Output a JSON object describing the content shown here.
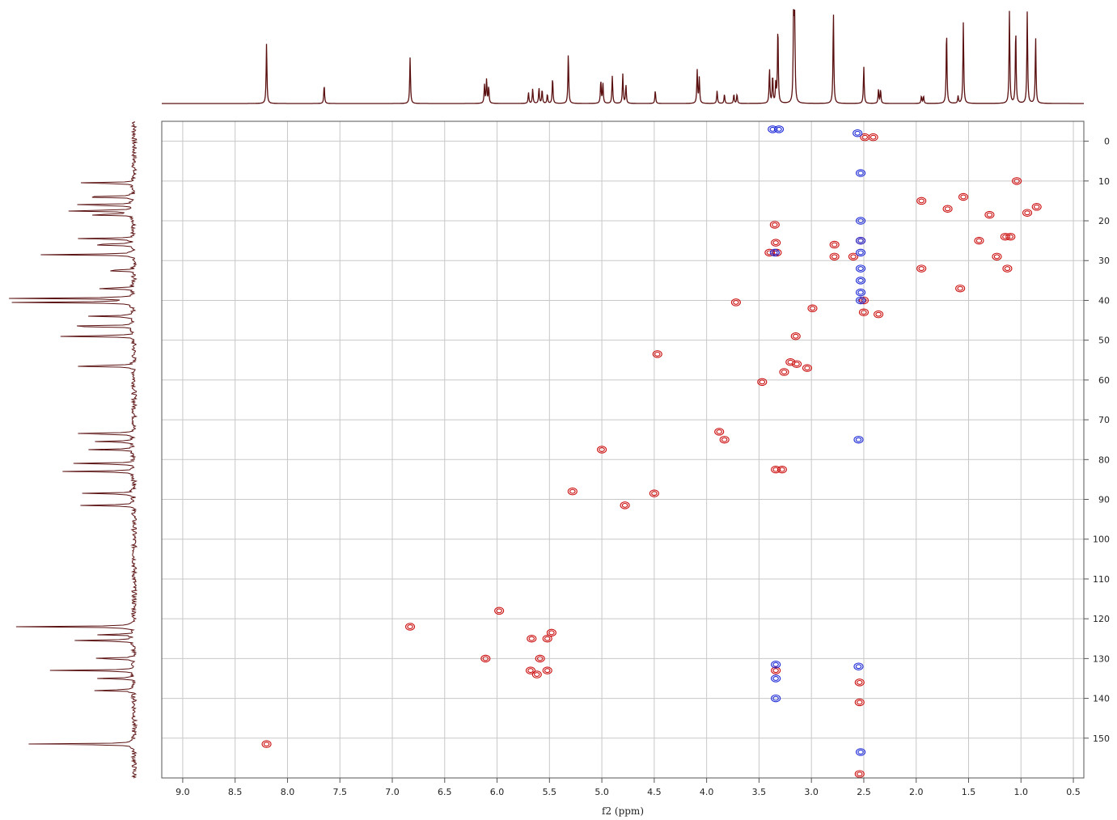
{
  "chart_data": {
    "type": "scatter",
    "subtype": "2D NMR contour (HSQC)",
    "xlabel": "f2 (ppm)",
    "ylabel": "",
    "xlim": [
      9.2,
      0.4
    ],
    "ylim": [
      -5,
      160
    ],
    "x_reversed": true,
    "y_reversed": true,
    "grid": true,
    "legend": "none",
    "x_ticks": [
      "9.0",
      "8.5",
      "8.0",
      "7.5",
      "7.0",
      "6.5",
      "6.0",
      "5.5",
      "5.0",
      "4.5",
      "4.0",
      "3.5",
      "3.0",
      "2.5",
      "2.0",
      "1.5",
      "1.0",
      "0.5"
    ],
    "y_ticks": [
      "0",
      "10",
      "20",
      "30",
      "40",
      "50",
      "60",
      "70",
      "80",
      "90",
      "100",
      "110",
      "120",
      "130",
      "140",
      "150"
    ],
    "colors": {
      "positive": "#cc1111",
      "negative": "#1e2bd6",
      "projection": "#5a1010",
      "grid": "#c8c8c8",
      "frame": "#555555"
    },
    "series": [
      {
        "name": "",
        "sign": "positive",
        "points": [
          {
            "x": 8.2,
            "y": 151.5
          },
          {
            "x": 6.83,
            "y": 122
          },
          {
            "x": 6.11,
            "y": 130
          },
          {
            "x": 5.98,
            "y": 118
          },
          {
            "x": 5.67,
            "y": 125
          },
          {
            "x": 5.59,
            "y": 130
          },
          {
            "x": 5.62,
            "y": 134
          },
          {
            "x": 5.52,
            "y": 133
          },
          {
            "x": 5.48,
            "y": 123.5
          },
          {
            "x": 5.52,
            "y": 125
          },
          {
            "x": 5.68,
            "y": 133
          },
          {
            "x": 5.28,
            "y": 88
          },
          {
            "x": 5.0,
            "y": 77.5
          },
          {
            "x": 4.78,
            "y": 91.5
          },
          {
            "x": 4.5,
            "y": 88.5
          },
          {
            "x": 4.47,
            "y": 53.5
          },
          {
            "x": 3.88,
            "y": 73
          },
          {
            "x": 3.83,
            "y": 75
          },
          {
            "x": 3.72,
            "y": 40.5
          },
          {
            "x": 3.47,
            "y": 60.5
          },
          {
            "x": 3.4,
            "y": 28
          },
          {
            "x": 3.34,
            "y": 82.5
          },
          {
            "x": 3.28,
            "y": 82.5
          },
          {
            "x": 3.26,
            "y": 58
          },
          {
            "x": 3.2,
            "y": 55.5
          },
          {
            "x": 3.14,
            "y": 56
          },
          {
            "x": 3.15,
            "y": 49
          },
          {
            "x": 3.35,
            "y": 21
          },
          {
            "x": 3.34,
            "y": 25.5
          },
          {
            "x": 3.33,
            "y": 28
          },
          {
            "x": 3.04,
            "y": 57
          },
          {
            "x": 2.99,
            "y": 42
          },
          {
            "x": 2.78,
            "y": 26
          },
          {
            "x": 2.78,
            "y": 29
          },
          {
            "x": 2.6,
            "y": 29
          },
          {
            "x": 2.5,
            "y": 40
          },
          {
            "x": 2.5,
            "y": 43
          },
          {
            "x": 2.49,
            "y": -1
          },
          {
            "x": 2.41,
            "y": -1
          },
          {
            "x": 2.36,
            "y": 43.5
          },
          {
            "x": 1.95,
            "y": 15
          },
          {
            "x": 1.95,
            "y": 32
          },
          {
            "x": 1.7,
            "y": 17
          },
          {
            "x": 1.55,
            "y": 14
          },
          {
            "x": 1.58,
            "y": 37
          },
          {
            "x": 1.4,
            "y": 25
          },
          {
            "x": 1.3,
            "y": 18.5
          },
          {
            "x": 1.23,
            "y": 29
          },
          {
            "x": 1.15,
            "y": 24
          },
          {
            "x": 1.1,
            "y": 24
          },
          {
            "x": 1.13,
            "y": 32
          },
          {
            "x": 1.04,
            "y": 10
          },
          {
            "x": 0.94,
            "y": 18
          },
          {
            "x": 0.85,
            "y": 16.5
          },
          {
            "x": 2.54,
            "y": 136
          },
          {
            "x": 2.54,
            "y": 141
          },
          {
            "x": 2.54,
            "y": 159
          },
          {
            "x": 3.34,
            "y": 133
          },
          {
            "x": 2.53,
            "y": 25
          }
        ]
      },
      {
        "name": "",
        "sign": "negative",
        "points": [
          {
            "x": 3.37,
            "y": -3
          },
          {
            "x": 3.31,
            "y": -3
          },
          {
            "x": 2.56,
            "y": -2
          },
          {
            "x": 2.53,
            "y": 8
          },
          {
            "x": 2.53,
            "y": 20
          },
          {
            "x": 2.53,
            "y": 25
          },
          {
            "x": 2.53,
            "y": 28
          },
          {
            "x": 2.53,
            "y": 32
          },
          {
            "x": 2.53,
            "y": 35
          },
          {
            "x": 2.53,
            "y": 38
          },
          {
            "x": 2.53,
            "y": 40
          },
          {
            "x": 2.55,
            "y": 75
          },
          {
            "x": 3.34,
            "y": 131.5
          },
          {
            "x": 3.34,
            "y": 135
          },
          {
            "x": 3.34,
            "y": 140
          },
          {
            "x": 2.55,
            "y": 132
          },
          {
            "x": 2.53,
            "y": 153.5
          },
          {
            "x": 3.35,
            "y": 28
          }
        ]
      }
    ],
    "f2_projection_peaks": [
      {
        "x": 8.2,
        "h": 0.65
      },
      {
        "x": 7.65,
        "h": 0.2
      },
      {
        "x": 6.83,
        "h": 0.5
      },
      {
        "x": 6.12,
        "h": 0.2
      },
      {
        "x": 6.1,
        "h": 0.26
      },
      {
        "x": 6.08,
        "h": 0.18
      },
      {
        "x": 5.7,
        "h": 0.12
      },
      {
        "x": 5.66,
        "h": 0.16
      },
      {
        "x": 5.6,
        "h": 0.17
      },
      {
        "x": 5.57,
        "h": 0.15
      },
      {
        "x": 5.52,
        "h": 0.1
      },
      {
        "x": 5.47,
        "h": 0.28
      },
      {
        "x": 5.32,
        "h": 0.55
      },
      {
        "x": 5.01,
        "h": 0.25
      },
      {
        "x": 4.99,
        "h": 0.22
      },
      {
        "x": 4.9,
        "h": 0.3
      },
      {
        "x": 4.8,
        "h": 0.32
      },
      {
        "x": 4.77,
        "h": 0.2
      },
      {
        "x": 4.49,
        "h": 0.14
      },
      {
        "x": 4.09,
        "h": 0.36
      },
      {
        "x": 4.07,
        "h": 0.28
      },
      {
        "x": 3.9,
        "h": 0.14
      },
      {
        "x": 3.83,
        "h": 0.1
      },
      {
        "x": 3.74,
        "h": 0.1
      },
      {
        "x": 3.71,
        "h": 0.1
      },
      {
        "x": 3.4,
        "h": 0.38
      },
      {
        "x": 3.37,
        "h": 0.3
      },
      {
        "x": 3.34,
        "h": 0.22
      },
      {
        "x": 3.32,
        "h": 0.85
      },
      {
        "x": 3.17,
        "h": 1.0
      },
      {
        "x": 3.16,
        "h": 1.0
      },
      {
        "x": 2.79,
        "h": 1.0
      },
      {
        "x": 2.5,
        "h": 0.4
      },
      {
        "x": 2.36,
        "h": 0.15
      },
      {
        "x": 2.34,
        "h": 0.15
      },
      {
        "x": 1.95,
        "h": 0.08
      },
      {
        "x": 1.93,
        "h": 0.08
      },
      {
        "x": 1.71,
        "h": 0.8
      },
      {
        "x": 1.6,
        "h": 0.08
      },
      {
        "x": 1.55,
        "h": 0.88
      },
      {
        "x": 1.11,
        "h": 1.0
      },
      {
        "x": 1.05,
        "h": 0.82
      },
      {
        "x": 0.94,
        "h": 1.0
      },
      {
        "x": 0.86,
        "h": 0.72
      }
    ],
    "f1_projection_peaks": [
      {
        "y": 10.5,
        "h": 0.55
      },
      {
        "y": 14,
        "h": 0.55
      },
      {
        "y": 16,
        "h": 0.6
      },
      {
        "y": 17.5,
        "h": 0.65
      },
      {
        "y": 18.5,
        "h": 0.45
      },
      {
        "y": 24.5,
        "h": 0.5
      },
      {
        "y": 26,
        "h": 0.45
      },
      {
        "y": 28.5,
        "h": 0.8
      },
      {
        "y": 32.5,
        "h": 0.3
      },
      {
        "y": 37,
        "h": 0.35
      },
      {
        "y": 39.5,
        "h": 1.0
      },
      {
        "y": 40.5,
        "h": 1.0
      },
      {
        "y": 44,
        "h": 0.4
      },
      {
        "y": 46.5,
        "h": 0.75
      },
      {
        "y": 49,
        "h": 0.7
      },
      {
        "y": 56.5,
        "h": 0.6
      },
      {
        "y": 73.5,
        "h": 0.6
      },
      {
        "y": 75.5,
        "h": 0.35
      },
      {
        "y": 77.5,
        "h": 0.35
      },
      {
        "y": 81,
        "h": 0.55
      },
      {
        "y": 83,
        "h": 0.6
      },
      {
        "y": 88.5,
        "h": 0.45
      },
      {
        "y": 91.5,
        "h": 0.45
      },
      {
        "y": 122,
        "h": 0.95
      },
      {
        "y": 124,
        "h": 0.3
      },
      {
        "y": 125.5,
        "h": 0.55
      },
      {
        "y": 130,
        "h": 0.4
      },
      {
        "y": 133,
        "h": 0.7
      },
      {
        "y": 135,
        "h": 0.3
      },
      {
        "y": 138,
        "h": 0.4
      },
      {
        "y": 151.5,
        "h": 0.95
      }
    ]
  }
}
